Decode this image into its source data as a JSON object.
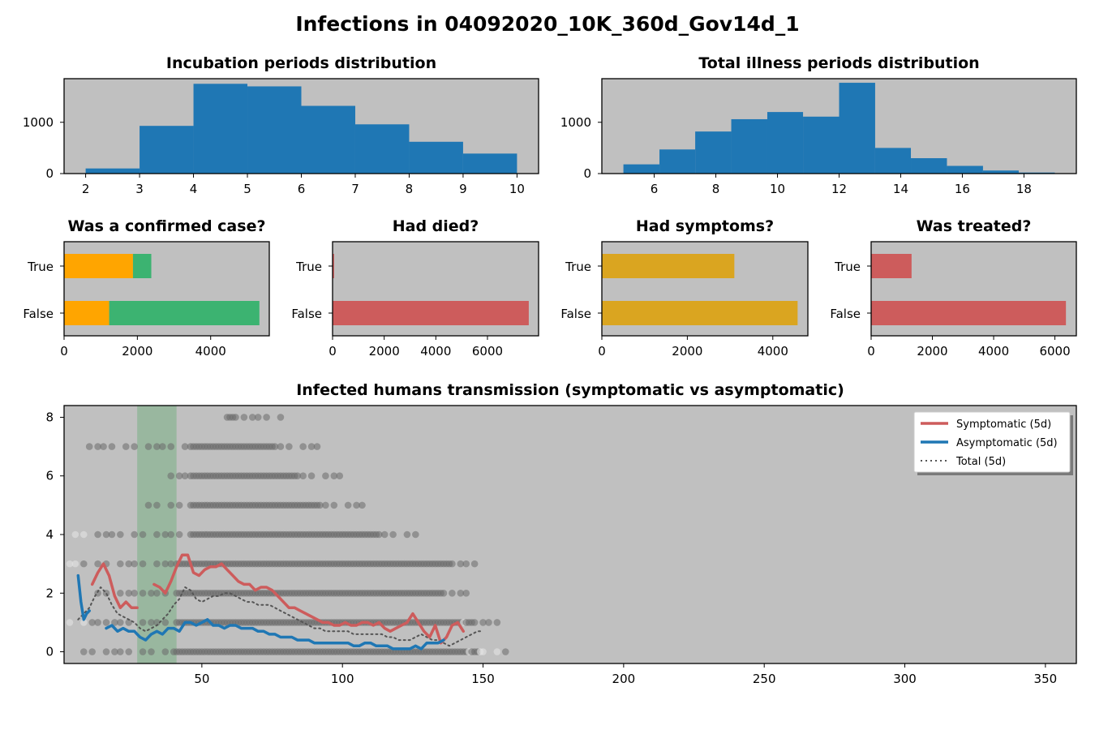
{
  "figure_title": "Infections in 04092020_10K_360d_Gov14d_1",
  "colors": {
    "axes_bg": "#c0c0c0",
    "hist_bar": "#1f77b4",
    "confirmed_no": "#ffa500",
    "confirmed_yes": "#3cb371",
    "died_bar": "#cd5c5c",
    "symptoms_bar": "#daa520",
    "treated_bar": "#cd5c5c",
    "symptomatic_line": "#cd5c5c",
    "asymptomatic_line": "#1f77b4",
    "total_line": "#555555",
    "scatter_dark": "#6a6a6a",
    "scatter_light": "#e6e6e6",
    "shaded_band": "#7fb088"
  },
  "chart_data": [
    {
      "id": "incubation",
      "type": "bar",
      "title": "Incubation periods distribution",
      "bins": [
        [
          2,
          3,
          100
        ],
        [
          3,
          4,
          930
        ],
        [
          4,
          5,
          1750
        ],
        [
          5,
          6,
          1700
        ],
        [
          6,
          7,
          1320
        ],
        [
          7,
          8,
          960
        ],
        [
          8,
          9,
          620
        ],
        [
          9,
          10,
          390
        ]
      ],
      "xlim": [
        1.6,
        10.4
      ],
      "ylim": [
        0,
        1850
      ],
      "xticks": [
        2,
        3,
        4,
        5,
        6,
        7,
        8,
        9,
        10
      ],
      "yticks": [
        0,
        1000
      ]
    },
    {
      "id": "illness",
      "type": "bar",
      "title": "Total illness periods distribution",
      "bins": [
        [
          5,
          6.17,
          180
        ],
        [
          6.17,
          7.33,
          470
        ],
        [
          7.33,
          8.5,
          820
        ],
        [
          8.5,
          9.67,
          1060
        ],
        [
          9.67,
          10.83,
          1200
        ],
        [
          10.83,
          12,
          1110
        ],
        [
          12,
          13.17,
          1770
        ],
        [
          13.17,
          14.33,
          500
        ],
        [
          14.33,
          15.5,
          300
        ],
        [
          15.5,
          16.67,
          150
        ],
        [
          16.67,
          17.83,
          60
        ],
        [
          17.83,
          19,
          20
        ]
      ],
      "xlim": [
        4.3,
        19.7
      ],
      "ylim": [
        0,
        1850
      ],
      "xticks": [
        6,
        8,
        10,
        12,
        14,
        16,
        18
      ],
      "yticks": [
        0,
        1000
      ]
    },
    {
      "id": "confirmed",
      "type": "bar",
      "orientation": "horizontal",
      "stacked": true,
      "title": "Was a confirmed case?",
      "categories": [
        "True",
        "False"
      ],
      "series": [
        {
          "values": [
            1880,
            1230
          ]
        },
        {
          "values": [
            500,
            4100
          ]
        }
      ],
      "xlim": [
        0,
        5600
      ],
      "xticks": [
        0,
        2000,
        4000
      ]
    },
    {
      "id": "died",
      "type": "bar",
      "orientation": "horizontal",
      "title": "Had died?",
      "categories": [
        "True",
        "False"
      ],
      "values": [
        60,
        7600
      ],
      "xlim": [
        0,
        7980
      ],
      "xticks": [
        0,
        2000,
        4000,
        6000
      ]
    },
    {
      "id": "symptoms",
      "type": "bar",
      "orientation": "horizontal",
      "title": "Had symptoms?",
      "categories": [
        "True",
        "False"
      ],
      "values": [
        3100,
        4580
      ],
      "xlim": [
        0,
        4820
      ],
      "xticks": [
        0,
        2000,
        4000
      ]
    },
    {
      "id": "treated",
      "type": "bar",
      "orientation": "horizontal",
      "title": "Was treated?",
      "categories": [
        "True",
        "False"
      ],
      "values": [
        1320,
        6360
      ],
      "xlim": [
        0,
        6700
      ],
      "xticks": [
        0,
        2000,
        4000,
        6000
      ]
    },
    {
      "id": "transmission",
      "type": "line",
      "title": "Infected humans transmission (symptomatic vs asymptomatic)",
      "xlim": [
        1,
        361
      ],
      "ylim": [
        -0.4,
        8.4
      ],
      "xticks": [
        50,
        100,
        150,
        200,
        250,
        300,
        350
      ],
      "yticks": [
        0,
        2,
        4,
        6,
        8
      ],
      "shaded_x": [
        27,
        41
      ],
      "scatter_ranges": [
        {
          "y": 0,
          "from": 7,
          "to": 158
        },
        {
          "y": 1,
          "from": 1,
          "to": 155
        },
        {
          "y": 2,
          "from": 12,
          "to": 145
        },
        {
          "y": 3,
          "from": 1,
          "to": 147
        },
        {
          "y": 4,
          "from": 4,
          "to": 129
        },
        {
          "y": 5,
          "from": 30,
          "to": 108
        },
        {
          "y": 6,
          "from": 35,
          "to": 100
        },
        {
          "y": 7,
          "from": 6,
          "to": 92
        },
        {
          "y": 8,
          "from": 59,
          "to": 78
        }
      ],
      "legend_position": "upper-right",
      "series": [
        {
          "name": "Symptomatic (5d)",
          "x": [
            11,
            13,
            15,
            17,
            19,
            21,
            23,
            25,
            27,
            "gap",
            33,
            35,
            37,
            39,
            41,
            43,
            45,
            47,
            49,
            51,
            53,
            55,
            57,
            59,
            61,
            63,
            65,
            67,
            69,
            71,
            73,
            75,
            77,
            79,
            81,
            83,
            85,
            87,
            89,
            91,
            93,
            95,
            97,
            99,
            101,
            103,
            105,
            107,
            109,
            111,
            113,
            115,
            117,
            119,
            121,
            123,
            125,
            127,
            129,
            131,
            133,
            135,
            137,
            139,
            141,
            143
          ],
          "y": [
            2.3,
            2.7,
            3.0,
            2.6,
            1.9,
            1.5,
            1.7,
            1.5,
            1.5,
            "gap",
            2.3,
            2.2,
            2.0,
            2.4,
            2.9,
            3.3,
            3.3,
            2.7,
            2.6,
            2.8,
            2.9,
            2.9,
            3.0,
            2.8,
            2.6,
            2.4,
            2.3,
            2.3,
            2.1,
            2.2,
            2.2,
            2.1,
            1.9,
            1.7,
            1.5,
            1.5,
            1.4,
            1.3,
            1.2,
            1.1,
            1.0,
            1.0,
            0.9,
            0.9,
            1.0,
            0.9,
            0.9,
            1.0,
            1.0,
            0.9,
            1.0,
            0.8,
            0.7,
            0.8,
            0.9,
            1.0,
            1.3,
            1.0,
            0.7,
            0.5,
            0.9,
            0.3,
            0.5,
            0.9,
            1.0,
            0.7
          ]
        },
        {
          "name": "Asymptomatic (5d)",
          "x": [
            6,
            7,
            8,
            9,
            10,
            "gap",
            16,
            18,
            20,
            22,
            24,
            26,
            28,
            30,
            32,
            34,
            36,
            38,
            40,
            42,
            44,
            46,
            48,
            50,
            52,
            54,
            56,
            58,
            60,
            62,
            64,
            66,
            68,
            70,
            72,
            74,
            76,
            78,
            80,
            82,
            84,
            86,
            88,
            90,
            92,
            94,
            96,
            98,
            100,
            102,
            104,
            106,
            108,
            110,
            112,
            114,
            116,
            118,
            120,
            122,
            124,
            126,
            128,
            130,
            132,
            134,
            136
          ],
          "y": [
            2.6,
            1.7,
            1.1,
            1.3,
            1.4,
            "gap",
            0.8,
            0.9,
            0.7,
            0.8,
            0.7,
            0.7,
            0.5,
            0.4,
            0.6,
            0.7,
            0.6,
            0.8,
            0.8,
            0.7,
            1.0,
            1.0,
            0.9,
            1.0,
            1.1,
            0.9,
            0.9,
            0.8,
            0.9,
            0.9,
            0.8,
            0.8,
            0.8,
            0.7,
            0.7,
            0.6,
            0.6,
            0.5,
            0.5,
            0.5,
            0.4,
            0.4,
            0.4,
            0.3,
            0.3,
            0.3,
            0.3,
            0.3,
            0.3,
            0.3,
            0.2,
            0.2,
            0.3,
            0.3,
            0.2,
            0.2,
            0.2,
            0.1,
            0.1,
            0.1,
            0.1,
            0.2,
            0.1,
            0.3,
            0.3,
            0.3,
            0.4
          ]
        },
        {
          "name": "Total (5d)",
          "x": [
            6,
            8,
            10,
            12,
            14,
            16,
            18,
            20,
            22,
            24,
            26,
            28,
            30,
            32,
            34,
            36,
            38,
            40,
            42,
            44,
            46,
            48,
            50,
            52,
            54,
            56,
            58,
            60,
            62,
            64,
            66,
            68,
            70,
            72,
            74,
            76,
            78,
            80,
            82,
            84,
            86,
            88,
            90,
            92,
            94,
            96,
            98,
            100,
            102,
            104,
            106,
            108,
            110,
            112,
            114,
            116,
            118,
            120,
            122,
            124,
            126,
            128,
            130,
            132,
            134,
            136,
            138,
            140,
            142,
            144,
            146,
            148,
            150
          ],
          "y": [
            1.1,
            1.3,
            1.5,
            1.9,
            2.2,
            2.0,
            1.6,
            1.3,
            1.2,
            1.1,
            1.0,
            0.8,
            0.7,
            0.8,
            0.9,
            1.1,
            1.3,
            1.6,
            1.8,
            2.2,
            2.1,
            1.8,
            1.7,
            1.8,
            1.9,
            1.9,
            2.0,
            2.0,
            1.9,
            1.8,
            1.7,
            1.7,
            1.6,
            1.6,
            1.6,
            1.5,
            1.4,
            1.3,
            1.2,
            1.1,
            1.0,
            0.9,
            0.8,
            0.8,
            0.7,
            0.7,
            0.7,
            0.7,
            0.7,
            0.6,
            0.6,
            0.6,
            0.6,
            0.6,
            0.6,
            0.5,
            0.5,
            0.4,
            0.4,
            0.4,
            0.5,
            0.6,
            0.5,
            0.4,
            0.4,
            0.3,
            0.2,
            0.3,
            0.4,
            0.5,
            0.6,
            0.7,
            0.7
          ]
        }
      ]
    }
  ]
}
